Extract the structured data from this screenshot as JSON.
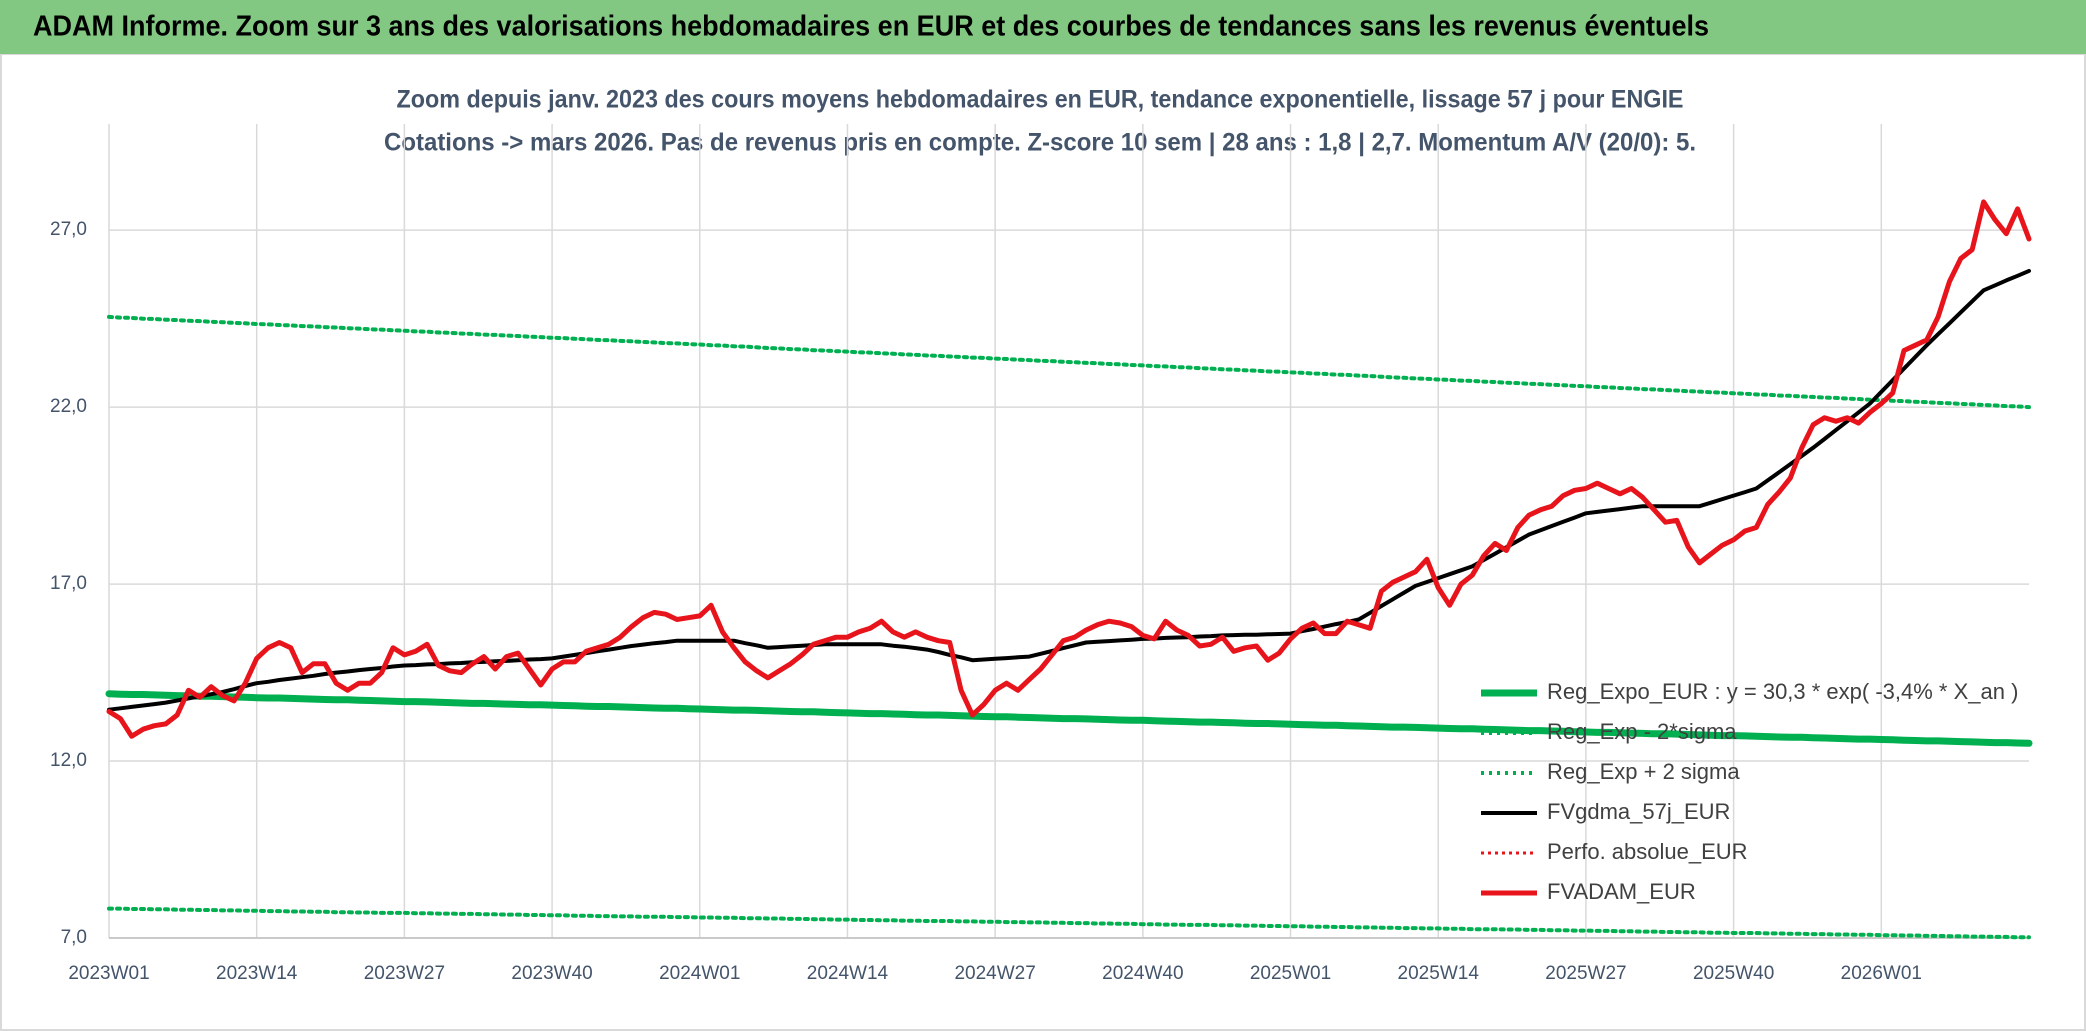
{
  "chart_data": {
    "type": "line",
    "title": "ADAM Informe. Zoom sur 3 ans des valorisations hebdomadaires en EUR et des courbes de tendances sans les revenus éventuels",
    "subtitle": [
      "Zoom depuis janv. 2023 des cours moyens hebdomadaires en EUR, tendance exponentielle, lissage 57 j pour ENGIE",
      "Cotations -> mars 2026. Pas de revenus pris en compte. Z-score 10 sem | 28 ans : 1,8 | 2,7. Momentum A/V (20/0): 5."
    ],
    "categories": [
      "2023W01",
      null,
      null,
      null,
      null,
      null,
      null,
      null,
      null,
      null,
      null,
      null,
      null,
      "2023W14",
      null,
      null,
      null,
      null,
      null,
      null,
      null,
      null,
      null,
      null,
      null,
      null,
      "2023W27",
      null,
      null,
      null,
      null,
      null,
      null,
      null,
      null,
      null,
      null,
      null,
      null,
      "2023W40",
      null,
      null,
      null,
      null,
      null,
      null,
      null,
      null,
      null,
      null,
      null,
      null,
      "2024W01",
      null,
      null,
      null,
      null,
      null,
      null,
      null,
      null,
      null,
      null,
      null,
      null,
      "2024W14",
      null,
      null,
      null,
      null,
      null,
      null,
      null,
      null,
      null,
      null,
      null,
      null,
      "2024W27",
      null,
      null,
      null,
      null,
      null,
      null,
      null,
      null,
      null,
      null,
      null,
      null,
      "2024W40",
      null,
      null,
      null,
      null,
      null,
      null,
      null,
      null,
      null,
      null,
      null,
      null,
      "2025W01",
      null,
      null,
      null,
      null,
      null,
      null,
      null,
      null,
      null,
      null,
      null,
      null,
      "2025W14",
      null,
      null,
      null,
      null,
      null,
      null,
      null,
      null,
      null,
      null,
      null,
      null,
      "2025W27",
      null,
      null,
      null,
      null,
      null,
      null,
      null,
      null,
      null,
      null,
      null,
      null,
      "2025W40",
      null,
      null,
      null,
      null,
      null,
      null,
      null,
      null,
      null,
      null,
      null,
      null,
      "2026W01",
      null,
      null,
      null,
      null,
      null,
      null,
      null,
      null,
      null,
      null,
      null,
      null,
      null
    ],
    "series": [
      {
        "name": "Reg_Expo_EUR : y = 30,3 * exp( -3,4% *  X_an )",
        "color": "#00b050",
        "width": 7,
        "dash": "none",
        "values": [
          13.9,
          13.89,
          13.88,
          13.88,
          13.87,
          13.86,
          13.85,
          13.84,
          13.83,
          13.83,
          13.82,
          13.81,
          13.8,
          13.79,
          13.78,
          13.78,
          13.77,
          13.76,
          13.75,
          13.74,
          13.73,
          13.73,
          13.72,
          13.71,
          13.7,
          13.69,
          13.68,
          13.68,
          13.67,
          13.66,
          13.65,
          13.64,
          13.63,
          13.63,
          13.62,
          13.61,
          13.6,
          13.59,
          13.59,
          13.58,
          13.57,
          13.56,
          13.55,
          13.54,
          13.54,
          13.53,
          13.52,
          13.51,
          13.5,
          13.49,
          13.49,
          13.48,
          13.47,
          13.46,
          13.45,
          13.44,
          13.44,
          13.43,
          13.42,
          13.41,
          13.4,
          13.39,
          13.39,
          13.38,
          13.37,
          13.36,
          13.35,
          13.34,
          13.34,
          13.33,
          13.32,
          13.31,
          13.3,
          13.3,
          13.29,
          13.28,
          13.27,
          13.26,
          13.25,
          13.25,
          13.24,
          13.23,
          13.22,
          13.21,
          13.2,
          13.2,
          13.19,
          13.18,
          13.17,
          13.16,
          13.15,
          13.15,
          13.14,
          13.13,
          13.12,
          13.11,
          13.1,
          13.1,
          13.09,
          13.08,
          13.07,
          13.06,
          13.06,
          13.05,
          13.04,
          13.03,
          13.02,
          13.01,
          13.01,
          13.0,
          12.99,
          12.98,
          12.97,
          12.96,
          12.96,
          12.95,
          12.94,
          12.93,
          12.92,
          12.91,
          12.91,
          12.9,
          12.89,
          12.88,
          12.87,
          12.86,
          12.86,
          12.85,
          12.84,
          12.83,
          12.82,
          12.81,
          12.81,
          12.8,
          12.79,
          12.78,
          12.77,
          12.77,
          12.76,
          12.75,
          12.74,
          12.73,
          12.72,
          12.72,
          12.71,
          12.7,
          12.69,
          12.68,
          12.67,
          12.67,
          12.66,
          12.65,
          12.64,
          12.63,
          12.62,
          12.62,
          12.61,
          12.6,
          12.59,
          12.58,
          12.57,
          12.57,
          12.56,
          12.55,
          12.54,
          12.53,
          12.52,
          12.52,
          12.51,
          12.5
        ]
      },
      {
        "name": "Reg_Exp - 2*sigma",
        "color": "#00b050",
        "width": 4,
        "dash": "3 5",
        "values": [
          7.83,
          7.83,
          7.82,
          7.82,
          7.81,
          7.81,
          7.8,
          7.8,
          7.79,
          7.79,
          7.78,
          7.78,
          7.77,
          7.77,
          7.76,
          7.76,
          7.75,
          7.75,
          7.74,
          7.74,
          7.73,
          7.73,
          7.72,
          7.72,
          7.71,
          7.71,
          7.71,
          7.7,
          7.7,
          7.69,
          7.69,
          7.68,
          7.68,
          7.67,
          7.67,
          7.66,
          7.66,
          7.65,
          7.65,
          7.64,
          7.64,
          7.63,
          7.63,
          7.62,
          7.62,
          7.61,
          7.61,
          7.6,
          7.6,
          7.6,
          7.59,
          7.59,
          7.58,
          7.58,
          7.57,
          7.57,
          7.56,
          7.56,
          7.55,
          7.55,
          7.54,
          7.54,
          7.53,
          7.53,
          7.52,
          7.52,
          7.51,
          7.51,
          7.5,
          7.5,
          7.49,
          7.49,
          7.48,
          7.48,
          7.48,
          7.47,
          7.47,
          7.46,
          7.46,
          7.45,
          7.45,
          7.44,
          7.44,
          7.43,
          7.43,
          7.42,
          7.42,
          7.41,
          7.41,
          7.4,
          7.4,
          7.39,
          7.39,
          7.38,
          7.38,
          7.37,
          7.37,
          7.37,
          7.36,
          7.36,
          7.35,
          7.35,
          7.34,
          7.34,
          7.33,
          7.33,
          7.32,
          7.32,
          7.31,
          7.31,
          7.3,
          7.3,
          7.29,
          7.29,
          7.28,
          7.28,
          7.27,
          7.27,
          7.26,
          7.26,
          7.25,
          7.25,
          7.25,
          7.24,
          7.24,
          7.23,
          7.23,
          7.22,
          7.22,
          7.21,
          7.21,
          7.2,
          7.2,
          7.19,
          7.19,
          7.18,
          7.18,
          7.17,
          7.17,
          7.16,
          7.16,
          7.15,
          7.15,
          7.14,
          7.14,
          7.14,
          7.13,
          7.13,
          7.12,
          7.12,
          7.11,
          7.11,
          7.1,
          7.1,
          7.09,
          7.09,
          7.08,
          7.08,
          7.07,
          7.07,
          7.06,
          7.06,
          7.05,
          7.05,
          7.04,
          7.04,
          7.03,
          7.03,
          7.02,
          7.02
        ]
      },
      {
        "name": "Reg_Exp + 2 sigma",
        "color": "#00b050",
        "width": 4,
        "dash": "3 5",
        "values": [
          24.55,
          24.53,
          24.52,
          24.5,
          24.49,
          24.47,
          24.46,
          24.44,
          24.43,
          24.41,
          24.4,
          24.38,
          24.37,
          24.35,
          24.34,
          24.32,
          24.31,
          24.29,
          24.28,
          24.26,
          24.25,
          24.23,
          24.22,
          24.2,
          24.19,
          24.17,
          24.16,
          24.14,
          24.13,
          24.11,
          24.1,
          24.08,
          24.07,
          24.05,
          24.04,
          24.02,
          24.01,
          23.99,
          23.98,
          23.96,
          23.95,
          23.93,
          23.92,
          23.9,
          23.89,
          23.87,
          23.86,
          23.84,
          23.83,
          23.81,
          23.8,
          23.78,
          23.77,
          23.75,
          23.74,
          23.72,
          23.71,
          23.69,
          23.67,
          23.66,
          23.64,
          23.63,
          23.61,
          23.6,
          23.58,
          23.57,
          23.55,
          23.54,
          23.52,
          23.51,
          23.49,
          23.48,
          23.46,
          23.45,
          23.43,
          23.42,
          23.4,
          23.39,
          23.37,
          23.36,
          23.34,
          23.33,
          23.31,
          23.3,
          23.28,
          23.27,
          23.25,
          23.24,
          23.22,
          23.21,
          23.19,
          23.18,
          23.16,
          23.15,
          23.13,
          23.12,
          23.1,
          23.09,
          23.07,
          23.06,
          23.04,
          23.03,
          23.01,
          23.0,
          22.98,
          22.97,
          22.95,
          22.94,
          22.92,
          22.91,
          22.89,
          22.88,
          22.86,
          22.84,
          22.83,
          22.81,
          22.8,
          22.78,
          22.77,
          22.75,
          22.74,
          22.72,
          22.71,
          22.69,
          22.68,
          22.66,
          22.65,
          22.63,
          22.62,
          22.6,
          22.59,
          22.57,
          22.56,
          22.54,
          22.53,
          22.51,
          22.5,
          22.48,
          22.47,
          22.45,
          22.44,
          22.42,
          22.41,
          22.39,
          22.38,
          22.36,
          22.35,
          22.33,
          22.32,
          22.3,
          22.29,
          22.27,
          22.26,
          22.24,
          22.23,
          22.21,
          22.2,
          22.18,
          22.17,
          22.15,
          22.14,
          22.12,
          22.11,
          22.09,
          22.08,
          22.06,
          22.05,
          22.03,
          22.02,
          22.0
        ]
      },
      {
        "name": "FVgdma_57j_EUR",
        "color": "#000000",
        "width": 4,
        "dash": "none",
        "values": [
          13.45,
          13.49,
          13.53,
          13.57,
          13.61,
          13.65,
          13.71,
          13.77,
          13.83,
          13.89,
          13.95,
          14.03,
          14.12,
          14.2,
          14.24,
          14.29,
          14.33,
          14.37,
          14.41,
          14.46,
          14.5,
          14.53,
          14.57,
          14.6,
          14.63,
          14.67,
          14.7,
          14.71,
          14.73,
          14.74,
          14.76,
          14.77,
          14.79,
          14.8,
          14.82,
          14.83,
          14.85,
          14.87,
          14.88,
          14.9,
          14.95,
          15.0,
          15.05,
          15.1,
          15.15,
          15.2,
          15.25,
          15.29,
          15.33,
          15.36,
          15.4,
          15.4,
          15.4,
          15.4,
          15.4,
          15.4,
          15.33,
          15.27,
          15.2,
          15.22,
          15.24,
          15.26,
          15.28,
          15.3,
          15.3,
          15.3,
          15.3,
          15.3,
          15.3,
          15.26,
          15.23,
          15.19,
          15.15,
          15.08,
          15.0,
          14.93,
          14.85,
          14.87,
          14.89,
          14.91,
          14.93,
          14.95,
          15.03,
          15.11,
          15.19,
          15.27,
          15.35,
          15.37,
          15.39,
          15.41,
          15.43,
          15.45,
          15.46,
          15.48,
          15.49,
          15.5,
          15.52,
          15.53,
          15.55,
          15.56,
          15.57,
          15.57,
          15.58,
          15.59,
          15.6,
          15.67,
          15.73,
          15.8,
          15.87,
          15.93,
          16.0,
          16.19,
          16.38,
          16.57,
          16.76,
          16.95,
          17.06,
          17.17,
          17.28,
          17.39,
          17.5,
          17.68,
          17.86,
          18.04,
          18.22,
          18.4,
          18.52,
          18.64,
          18.76,
          18.88,
          19.0,
          19.04,
          19.08,
          19.12,
          19.16,
          19.2,
          19.2,
          19.2,
          19.2,
          19.2,
          19.2,
          19.3,
          19.4,
          19.5,
          19.6,
          19.7,
          19.93,
          20.16,
          20.39,
          20.62,
          20.85,
          21.1,
          21.35,
          21.6,
          21.85,
          22.1,
          22.43,
          22.76,
          23.09,
          23.42,
          23.75,
          24.06,
          24.37,
          24.68,
          24.99,
          25.3,
          25.44,
          25.58,
          25.71,
          25.85
        ]
      },
      {
        "name": "Perfo. absolue_EUR",
        "color": "#e8141b",
        "width": 3,
        "dash": "3 4"
      },
      {
        "name": "FVADAM_EUR",
        "color": "#e8141b",
        "width": 5,
        "dash": "none",
        "values": [
          13.4,
          13.2,
          12.7,
          12.9,
          13.0,
          13.05,
          13.3,
          14.0,
          13.8,
          14.1,
          13.85,
          13.7,
          14.2,
          14.9,
          15.2,
          15.35,
          15.2,
          14.5,
          14.75,
          14.75,
          14.2,
          14.0,
          14.2,
          14.2,
          14.5,
          15.2,
          15.0,
          15.1,
          15.3,
          14.7,
          14.55,
          14.5,
          14.75,
          14.95,
          14.6,
          14.95,
          15.05,
          14.6,
          14.15,
          14.6,
          14.8,
          14.8,
          15.1,
          15.2,
          15.3,
          15.5,
          15.8,
          16.05,
          16.2,
          16.15,
          16.0,
          16.05,
          16.1,
          16.4,
          15.65,
          15.2,
          14.8,
          14.55,
          14.35,
          14.55,
          14.75,
          15.0,
          15.3,
          15.4,
          15.5,
          15.5,
          15.65,
          15.75,
          15.95,
          15.65,
          15.5,
          15.65,
          15.5,
          15.4,
          15.35,
          14.0,
          13.3,
          13.6,
          14.0,
          14.2,
          14.0,
          14.3,
          14.6,
          15.0,
          15.4,
          15.5,
          15.7,
          15.85,
          15.95,
          15.9,
          15.8,
          15.55,
          15.45,
          15.95,
          15.7,
          15.55,
          15.25,
          15.3,
          15.5,
          15.1,
          15.2,
          15.25,
          14.85,
          15.05,
          15.45,
          15.75,
          15.9,
          15.6,
          15.6,
          15.95,
          15.85,
          15.75,
          16.8,
          17.05,
          17.2,
          17.35,
          17.7,
          16.9,
          16.4,
          17.0,
          17.25,
          17.8,
          18.15,
          17.95,
          18.6,
          18.95,
          19.1,
          19.2,
          19.5,
          19.65,
          19.7,
          19.85,
          19.7,
          19.55,
          19.7,
          19.45,
          19.1,
          18.75,
          18.8,
          18.05,
          17.6,
          17.85,
          18.1,
          18.25,
          18.5,
          18.6,
          19.25,
          19.6,
          20.0,
          20.85,
          21.5,
          21.7,
          21.6,
          21.7,
          21.55,
          21.85,
          22.1,
          22.4,
          23.6,
          23.75,
          23.9,
          24.55,
          25.55,
          26.2,
          26.45,
          27.8,
          27.3,
          26.9,
          27.6,
          26.75
        ]
      }
    ],
    "ylim": [
      7,
      30
    ],
    "yticks": [
      {
        "value": 7,
        "label": "7,0"
      },
      {
        "value": 12,
        "label": "12,0"
      },
      {
        "value": 17,
        "label": "17,0"
      },
      {
        "value": 22,
        "label": "22,0"
      },
      {
        "value": 27,
        "label": "27,0"
      }
    ],
    "grid": true,
    "legend": "lower right"
  }
}
